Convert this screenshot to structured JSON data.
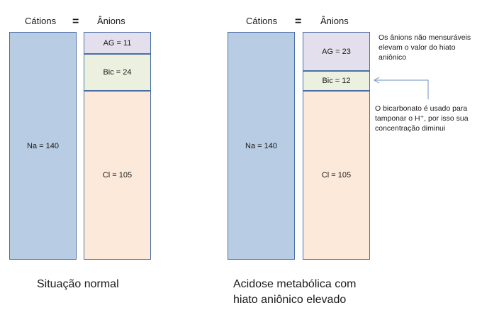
{
  "headers": {
    "cations": "Cátions",
    "equals": "=",
    "anions": "Ânions"
  },
  "normal": {
    "na": "Na = 140",
    "ag": "AG = 11",
    "bic": "Bic = 24",
    "cl": "Cl = 105",
    "caption": "Situação normal"
  },
  "acidosis": {
    "na": "Na = 140",
    "ag": "AG = 23",
    "bic": "Bic = 12",
    "cl": "Cl = 105",
    "caption_line1": "Acidose metabólica com",
    "caption_line2": "hiato aniônico elevado"
  },
  "notes": {
    "ag_line1": "Os ânions não mensuráveis",
    "ag_line2": "elevam o valor do hiato",
    "ag_line3": "aniônico",
    "bic_line1": "O bicarbonato é usado para",
    "bic_line2": "tamponar o H⁺, por isso sua",
    "bic_line3": "concentração diminui"
  },
  "colors": {
    "cation": "#b8cce4",
    "ag": "#e4dfec",
    "bic": "#ebf1de",
    "cl": "#fde9d9",
    "border": "#4a6fa5",
    "arrow": "#6f8fc0"
  }
}
